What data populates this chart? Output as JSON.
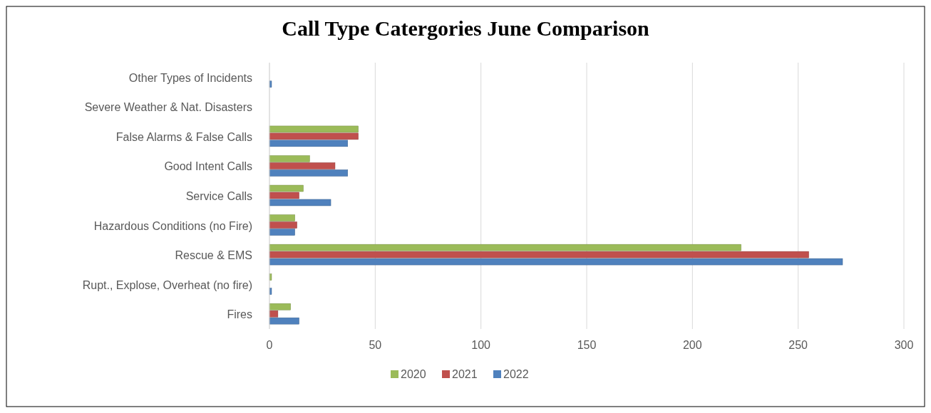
{
  "chart_data": {
    "type": "bar",
    "orientation": "horizontal",
    "title": "Call Type Catergories June Comparison",
    "categories": [
      "Other Types of Incidents",
      "Severe Weather & Nat. Disasters",
      "False Alarms & False Calls",
      "Good Intent Calls",
      "Service Calls",
      "Hazardous Conditions (no Fire)",
      "Rescue & EMS",
      "Rupt., Explose, Overheat (no fire)",
      "Fires"
    ],
    "series": [
      {
        "name": "2020",
        "color": "#9bbb59",
        "values": [
          0,
          0,
          42,
          19,
          16,
          12,
          223,
          1,
          10
        ]
      },
      {
        "name": "2021",
        "color": "#c0504d",
        "values": [
          0,
          0,
          42,
          31,
          14,
          13,
          255,
          0,
          4
        ]
      },
      {
        "name": "2022",
        "color": "#4f81bd",
        "values": [
          1,
          0,
          37,
          37,
          29,
          12,
          271,
          1,
          14
        ]
      }
    ],
    "xlim": [
      0,
      300
    ],
    "xticks": [
      0,
      50,
      100,
      150,
      200,
      250,
      300
    ],
    "grid": "x",
    "legend": "bottom"
  }
}
